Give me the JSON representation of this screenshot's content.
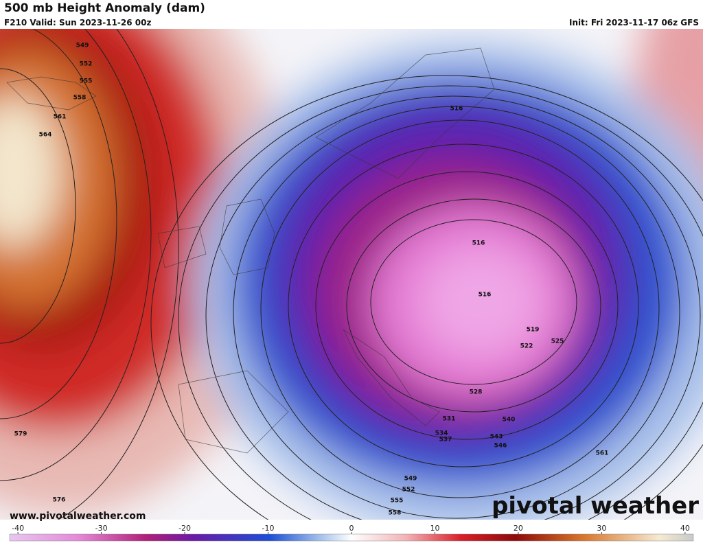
{
  "header": {
    "title": "500 mb Height Anomaly (dam)",
    "valid": "F210 Valid: Sun 2023-11-26 00z",
    "init": "Init: Fri 2023-11-17 06z GFS"
  },
  "contour_labels": [
    549,
    552,
    555,
    558,
    561,
    564,
    579,
    576,
    516,
    516,
    516,
    519,
    525,
    522,
    528,
    531,
    534,
    537,
    540,
    543,
    546,
    561,
    549,
    552,
    555,
    558
  ],
  "footer": {
    "url": "www.pivotalweather.com",
    "brand": "pivotal weather"
  },
  "colorbar": {
    "range": [
      -41,
      41
    ],
    "ticks": [
      -40,
      -30,
      -20,
      -10,
      0,
      10,
      20,
      30,
      40
    ]
  }
}
